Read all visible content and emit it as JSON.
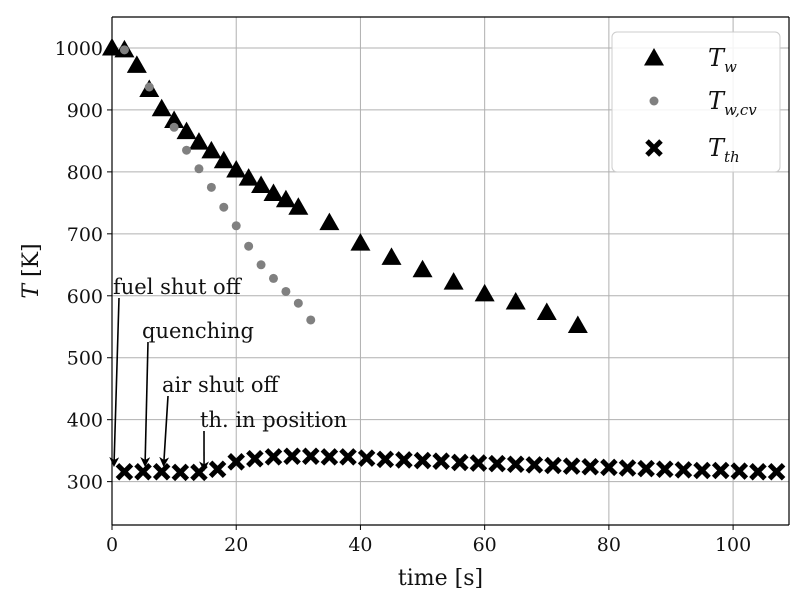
{
  "chart_data": {
    "type": "scatter",
    "title": "",
    "xlabel": "time [s]",
    "ylabel_symbol": "T",
    "ylabel_unit": "[K]",
    "xlim": [
      0,
      109
    ],
    "ylim": [
      230,
      1050
    ],
    "grid": true,
    "legend_position": "top-right",
    "x_ticks": [
      0,
      20,
      40,
      60,
      80,
      100
    ],
    "y_ticks": [
      300,
      400,
      500,
      600,
      700,
      800,
      900,
      1000
    ],
    "series": [
      {
        "name": "T_w",
        "label_main": "T",
        "label_sub": "w",
        "marker": "triangle",
        "color": "#000000",
        "x": [
          0,
          2,
          4,
          6,
          8,
          10,
          12,
          14,
          16,
          18,
          20,
          22,
          24,
          26,
          28,
          30,
          35,
          40,
          45,
          50,
          55,
          60,
          65,
          70,
          75
        ],
        "y": [
          1000,
          997,
          972,
          933,
          902,
          883,
          865,
          848,
          834,
          818,
          803,
          790,
          778,
          765,
          755,
          743,
          718,
          685,
          662,
          642,
          622,
          603,
          590,
          573,
          552
        ]
      },
      {
        "name": "T_w,cv",
        "label_main": "T",
        "label_sub": "w,cv",
        "marker": "circle",
        "color": "#808080",
        "x": [
          2,
          6,
          10,
          12,
          14,
          16,
          18,
          20,
          22,
          24,
          26,
          28,
          30,
          32
        ],
        "y": [
          997,
          937,
          872,
          835,
          805,
          775,
          743,
          713,
          680,
          650,
          628,
          607,
          588,
          561
        ]
      },
      {
        "name": "T_th",
        "label_main": "T",
        "label_sub": "th",
        "marker": "cross",
        "color": "#000000",
        "x": [
          2,
          5,
          8,
          11,
          14,
          17,
          20,
          23,
          26,
          29,
          32,
          35,
          38,
          41,
          44,
          47,
          50,
          53,
          56,
          59,
          62,
          65,
          68,
          71,
          74,
          77,
          80,
          83,
          86,
          89,
          92,
          95,
          98,
          101,
          104,
          107
        ],
        "y": [
          316,
          316,
          316,
          315,
          315,
          320,
          332,
          337,
          340,
          341,
          341,
          340,
          340,
          338,
          336,
          335,
          334,
          333,
          331,
          330,
          329,
          328,
          327,
          326,
          325,
          324,
          323,
          322,
          321,
          320,
          319,
          318,
          318,
          317,
          316,
          316
        ]
      }
    ],
    "annotations": [
      {
        "text": "fuel shut off",
        "x": 0,
        "y": 330
      },
      {
        "text": "quenching",
        "x": 5,
        "y": 330
      },
      {
        "text": "air shut off",
        "x": 8,
        "y": 330
      },
      {
        "text": "th. in position",
        "x": 14.5,
        "y": 323
      }
    ]
  }
}
